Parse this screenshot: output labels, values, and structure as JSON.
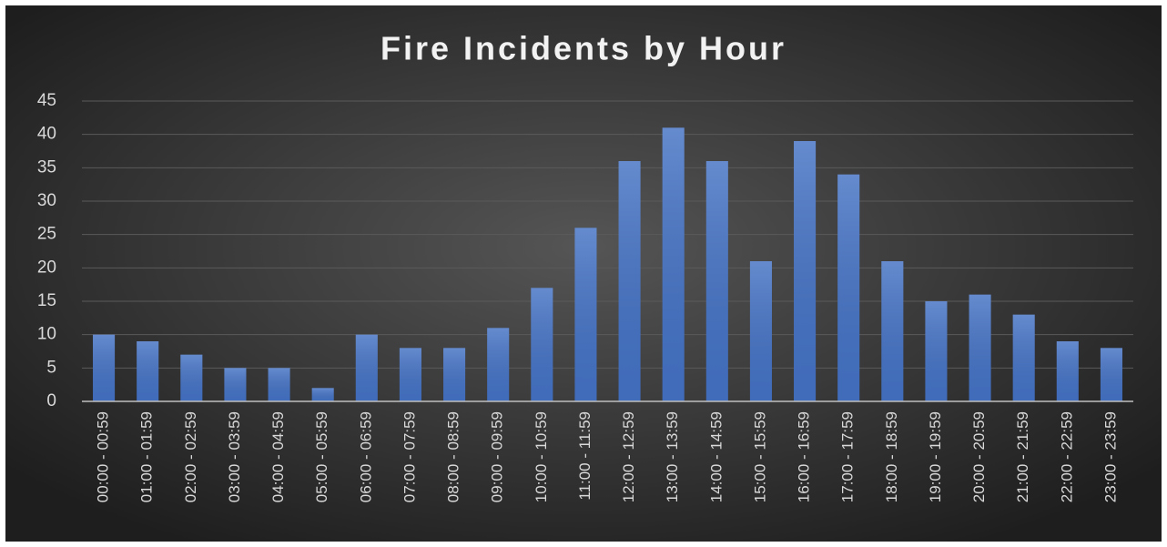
{
  "chart_data": {
    "type": "bar",
    "title": "Fire Incidents by Hour",
    "categories": [
      "00:00 - 00:59",
      "01:00 - 01:59",
      "02:00 - 02:59",
      "03:00 - 03:59",
      "04:00 - 04:59",
      "05:00 - 05:59",
      "06:00 - 06:59",
      "07:00 - 07:59",
      "08:00 - 08:59",
      "09:00 - 09:59",
      "10:00 - 10:59",
      "11:00 - 11:59",
      "12:00 - 12:59",
      "13:00 - 13:59",
      "14:00 - 14:59",
      "15:00 - 15:59",
      "16:00 - 16:59",
      "17:00 - 17:59",
      "18:00 - 18:59",
      "19:00 - 19:59",
      "20:00 - 20:59",
      "21:00 - 21:59",
      "22:00 - 22:59",
      "23:00 - 23:59"
    ],
    "values": [
      10,
      9,
      7,
      5,
      5,
      2,
      10,
      8,
      8,
      11,
      17,
      26,
      36,
      41,
      36,
      21,
      39,
      34,
      21,
      15,
      16,
      13,
      9,
      8
    ],
    "color": "#4472c4",
    "ylim": [
      0,
      45
    ],
    "yticks": [
      0,
      5,
      10,
      15,
      20,
      25,
      30,
      35,
      40,
      45
    ],
    "grid": true
  }
}
